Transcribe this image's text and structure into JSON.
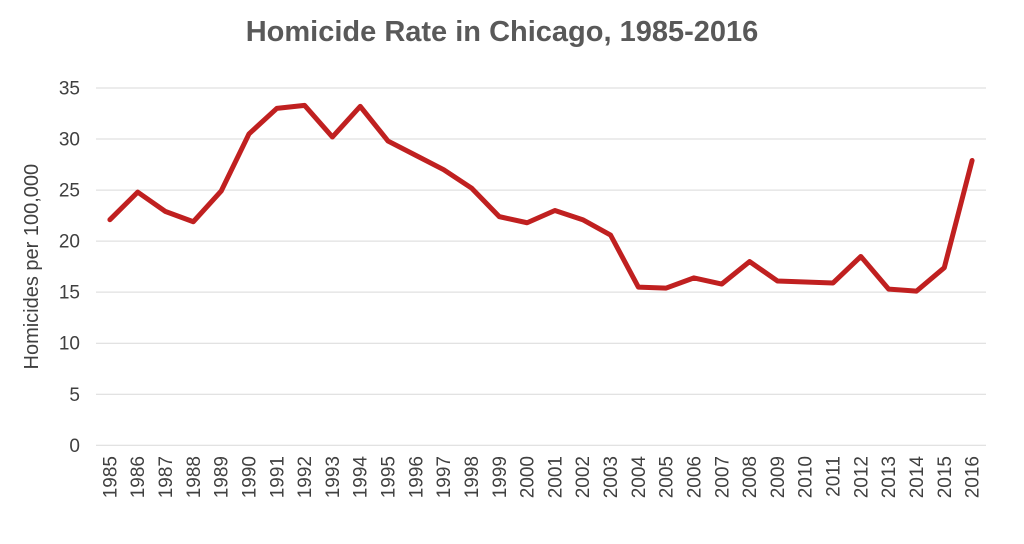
{
  "chart_data": {
    "type": "line",
    "title": "Homicide Rate in Chicago, 1985-2016",
    "xlabel": "",
    "ylabel": "Homicides per 100,000",
    "x": [
      "1985",
      "1986",
      "1987",
      "1988",
      "1989",
      "1990",
      "1991",
      "1992",
      "1993",
      "1994",
      "1995",
      "1996",
      "1997",
      "1998",
      "1999",
      "2000",
      "2001",
      "2002",
      "2003",
      "2004",
      "2005",
      "2006",
      "2007",
      "2008",
      "2009",
      "2010",
      "2011",
      "2012",
      "2013",
      "2014",
      "2015",
      "2016"
    ],
    "series": [
      {
        "name": "Homicides per 100,000",
        "values": [
          22.1,
          24.8,
          22.9,
          21.9,
          24.9,
          30.5,
          33.0,
          33.3,
          30.2,
          33.2,
          29.8,
          28.4,
          27.0,
          25.2,
          22.4,
          21.8,
          23.0,
          22.1,
          20.6,
          15.5,
          15.4,
          16.4,
          15.8,
          18.0,
          16.1,
          16.0,
          15.9,
          18.5,
          15.3,
          15.1,
          17.4,
          27.9
        ]
      }
    ],
    "ylim": [
      0,
      35
    ],
    "yticks": [
      0,
      5,
      10,
      15,
      20,
      25,
      30,
      35
    ],
    "grid": "horizontal",
    "legend": "none",
    "colors": {
      "line": "#c02020",
      "gridline": "#d9d9d9",
      "tick_label": "#404040",
      "title": "#595959",
      "background": "#ffffff"
    }
  }
}
